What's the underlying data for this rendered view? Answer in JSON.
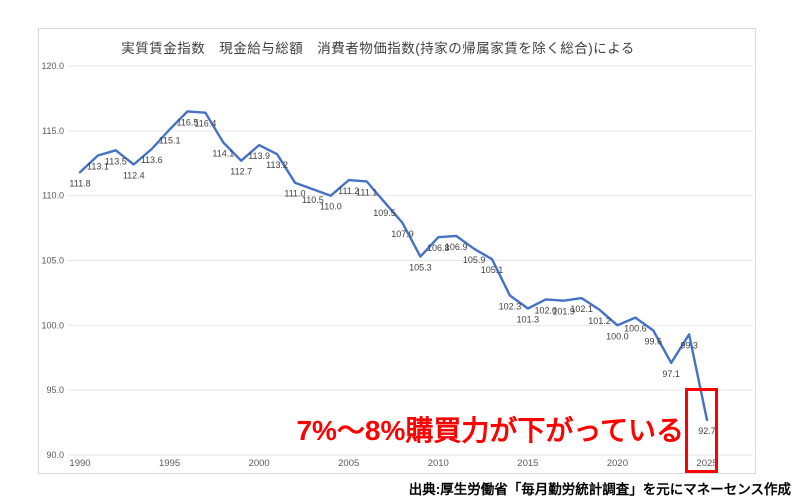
{
  "page": {
    "background": "#ffffff"
  },
  "chart_data": {
    "type": "line",
    "title": "実質賃金指数　現金給与総額　消費者物価指数(持家の帰属家賃を除く総合)による",
    "series_name": "実質賃金指数",
    "x": [
      1990,
      1991,
      1992,
      1993,
      1994,
      1995,
      1996,
      1997,
      1998,
      1999,
      2000,
      2001,
      2002,
      2003,
      2004,
      2005,
      2006,
      2007,
      2008,
      2009,
      2010,
      2011,
      2012,
      2013,
      2014,
      2015,
      2016,
      2017,
      2018,
      2019,
      2020,
      2021,
      2022,
      2023,
      2024,
      2025
    ],
    "values": [
      111.8,
      113.1,
      113.5,
      112.4,
      113.6,
      115.1,
      116.5,
      116.4,
      114.1,
      112.7,
      113.9,
      113.2,
      111.0,
      110.5,
      110.0,
      111.2,
      111.1,
      109.5,
      107.9,
      105.3,
      106.8,
      106.9,
      105.9,
      105.1,
      102.3,
      101.3,
      102.0,
      101.9,
      102.1,
      101.2,
      100.0,
      100.6,
      99.6,
      97.1,
      99.3,
      92.7
    ],
    "xlabel": "",
    "ylabel": "",
    "ylim": [
      90,
      120
    ],
    "y_ticks": [
      90,
      95,
      100,
      105,
      110,
      115,
      120
    ],
    "y_tick_labels": [
      "90.0",
      "95.0",
      "100.0",
      "105.0",
      "110.0",
      "115.0",
      "120.0"
    ],
    "x_ticks": [
      1990,
      1995,
      2000,
      2005,
      2010,
      2015,
      2020,
      2025
    ],
    "x_tick_labels": [
      "1990",
      "1995",
      "2000",
      "2005",
      "2010",
      "2015",
      "2020",
      "2025"
    ],
    "grid": true,
    "legend": "none",
    "data_labels": true,
    "line_color": "#4472C4",
    "grid_color": "#e5e5e5",
    "label_color": "#3f3f3f",
    "axis_color": "#595959"
  },
  "annotation": {
    "text": "7%〜8%購買力が下がっている",
    "color": "#ff0000",
    "highlight_year": 2025,
    "highlight_value": 92.7
  },
  "source": {
    "text": "出典:厚生労働省「毎月勤労統計調査」を元にマネーセンス作成"
  }
}
